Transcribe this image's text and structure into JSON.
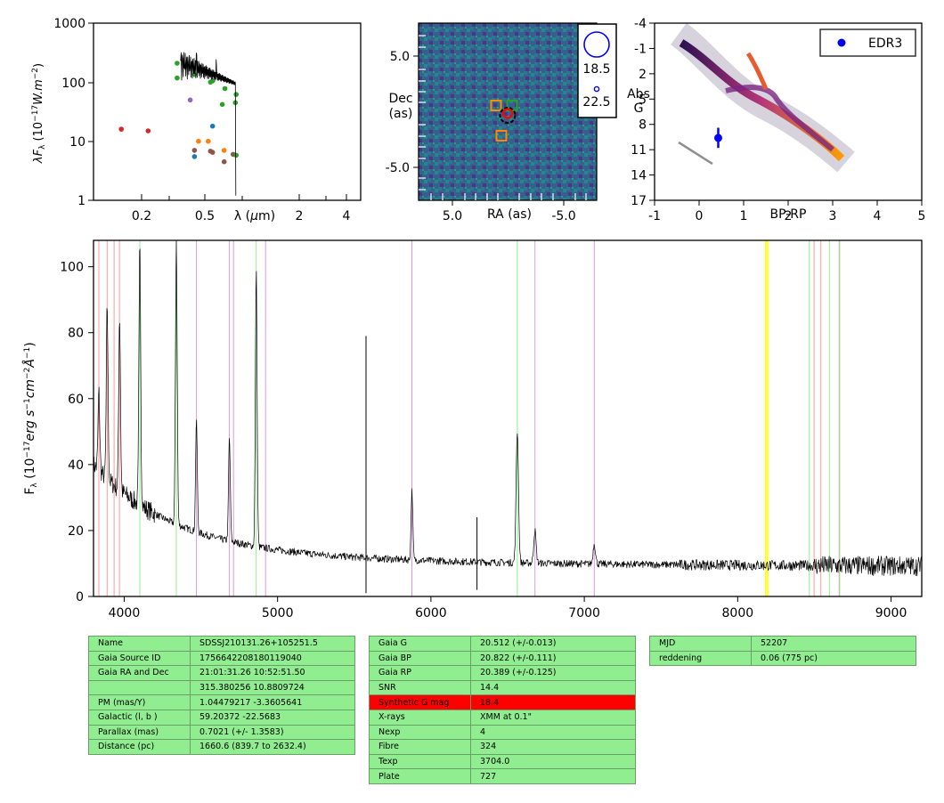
{
  "sed_panel": {
    "ylabel": "λF_λ (10^-17 W.m^-2)",
    "xlabel": "λ (μm)",
    "y_ticks": [
      "1",
      "10",
      "100",
      "1000"
    ],
    "x_ticks": [
      "0.2",
      "0.5",
      "2",
      "4"
    ],
    "scale": "log-log"
  },
  "image_panel": {
    "xlabel": "RA (as)",
    "ylabel": "Dec (as)",
    "x_ticks": [
      "5.0",
      "-5.0"
    ],
    "y_ticks": [
      "5.0",
      "-5.0"
    ],
    "legend": [
      "18.5",
      "22.5"
    ]
  },
  "hr_panel": {
    "xlabel": "BP-RP",
    "ylabel": "Abs G",
    "x_ticks": [
      "-1",
      "0",
      "1",
      "2",
      "3",
      "4",
      "5"
    ],
    "y_ticks": [
      "-4",
      "-1",
      "2",
      "5",
      "8",
      "11",
      "14",
      "17"
    ],
    "legend": "EDR3"
  },
  "spectrum_panel": {
    "ylabel": "F_λ (10^-17 erg s^-1 cm^-2 Å^-1)",
    "x_ticks": [
      "4000",
      "5000",
      "6000",
      "7000",
      "8000",
      "9000"
    ],
    "y_ticks": [
      "0",
      "20",
      "40",
      "60",
      "80",
      "100"
    ]
  },
  "chart_data": [
    {
      "type": "scatter",
      "id": "sed",
      "xlabel": "λ (μm)",
      "ylabel": "λF_λ (10^-17 W.m^-2)",
      "xscale": "log",
      "yscale": "log",
      "xlim": [
        0.1,
        6
      ],
      "ylim": [
        1,
        1000
      ],
      "series": [
        {
          "color": "#2ca02c",
          "points": [
            [
              0.36,
              210
            ],
            [
              0.36,
              118
            ],
            [
              0.41,
              185
            ],
            [
              0.47,
              135
            ],
            [
              0.6,
              100
            ],
            [
              0.62,
              105
            ],
            [
              0.72,
              42
            ],
            [
              0.75,
              78
            ],
            [
              0.88,
              45
            ],
            [
              0.89,
              62
            ]
          ]
        },
        {
          "color": "#d62728",
          "points": [
            [
              0.153,
              16
            ],
            [
              0.231,
              15
            ]
          ]
        },
        {
          "color": "#9467bd",
          "points": [
            [
              0.44,
              50
            ]
          ]
        },
        {
          "color": "#1f77b4",
          "points": [
            [
              0.47,
              5.5
            ],
            [
              0.62,
              18
            ]
          ]
        },
        {
          "color": "#ff7f0e",
          "points": [
            [
              0.5,
              10
            ],
            [
              0.58,
              10
            ],
            [
              0.74,
              7
            ]
          ]
        },
        {
          "color": "#8c564b",
          "points": [
            [
              0.47,
              7
            ],
            [
              0.6,
              6.8
            ],
            [
              0.62,
              6.5
            ],
            [
              0.74,
              4.5
            ],
            [
              0.85,
              6
            ]
          ]
        },
        {
          "color": "#2ca02c",
          "points": [
            [
              0.89,
              5.8
            ]
          ]
        }
      ]
    },
    {
      "type": "heatmap",
      "id": "image",
      "xlabel": "RA (as)",
      "ylabel": "Dec (as)",
      "xlim": [
        10,
        -10
      ],
      "ylim": [
        -10,
        10
      ],
      "markers": [
        {
          "shape": "square",
          "color": "#ff8c00",
          "x": 1.3,
          "y": 0.7
        },
        {
          "shape": "square",
          "color": "#ff8c00",
          "x": 0.7,
          "y": -2.7
        },
        {
          "shape": "square",
          "color": "#2ca02c",
          "x": -0.5,
          "y": 0.7
        },
        {
          "shape": "circle",
          "color": "#000000",
          "x": 0.0,
          "y": -0.4
        },
        {
          "shape": "circle",
          "color": "#ff0000",
          "x": 0.0,
          "y": -0.2
        }
      ]
    },
    {
      "type": "scatter",
      "id": "hr",
      "xlabel": "BP-RP",
      "ylabel": "Abs G",
      "xlim": [
        -1,
        5
      ],
      "ylim": [
        17,
        -4
      ],
      "legend": "EDR3",
      "points": [
        {
          "x": 0.43,
          "y": 9.6,
          "yerr": 1.2,
          "color": "#0000ff"
        }
      ]
    },
    {
      "type": "line",
      "id": "spectrum",
      "xlabel": "",
      "ylabel": "F_λ (10^-17 erg s^-1 cm^-2 Å^-1)",
      "xlim": [
        3800,
        9200
      ],
      "ylim": [
        0,
        108
      ],
      "lines": [
        {
          "x": 3835,
          "color": "#ff9999"
        },
        {
          "x": 3889,
          "color": "#ff9999"
        },
        {
          "x": 3934,
          "color": "#ff9999"
        },
        {
          "x": 3969,
          "color": "#ff9999"
        },
        {
          "x": 4102,
          "color": "#90ee90"
        },
        {
          "x": 4340,
          "color": "#90ee90"
        },
        {
          "x": 4471,
          "color": "#dd99dd"
        },
        {
          "x": 4686,
          "color": "#dd99dd"
        },
        {
          "x": 4713,
          "color": "#dd99dd"
        },
        {
          "x": 4861,
          "color": "#90ee90"
        },
        {
          "x": 4922,
          "color": "#dd99dd"
        },
        {
          "x": 5876,
          "color": "#dd99dd"
        },
        {
          "x": 6563,
          "color": "#90ee90"
        },
        {
          "x": 6678,
          "color": "#dd99dd"
        },
        {
          "x": 7065,
          "color": "#dd99dd"
        },
        {
          "x": 8183,
          "color": "#ffff00"
        },
        {
          "x": 8195,
          "color": "#ffff00"
        },
        {
          "x": 8467,
          "color": "#90ee90"
        },
        {
          "x": 8498,
          "color": "#ff9999"
        },
        {
          "x": 8542,
          "color": "#ff9999"
        },
        {
          "x": 8598,
          "color": "#90ee90"
        },
        {
          "x": 8662,
          "color": "#ff9999"
        },
        {
          "x": 8665,
          "color": "#90ee90"
        }
      ],
      "emission_peaks": [
        {
          "x": 3835,
          "y": 62
        },
        {
          "x": 3889,
          "y": 88
        },
        {
          "x": 3970,
          "y": 85
        },
        {
          "x": 4102,
          "y": 108
        },
        {
          "x": 4340,
          "y": 108
        },
        {
          "x": 4471,
          "y": 53
        },
        {
          "x": 4686,
          "y": 48
        },
        {
          "x": 4861,
          "y": 99
        },
        {
          "x": 5876,
          "y": 32
        },
        {
          "x": 6563,
          "y": 50
        },
        {
          "x": 6678,
          "y": 20
        },
        {
          "x": 7065,
          "y": 16
        }
      ],
      "spikes": [
        {
          "x": 5577,
          "ytop": 79,
          "ybot": 1
        },
        {
          "x": 6300,
          "ytop": 24,
          "ybot": 2
        }
      ]
    }
  ],
  "table1": [
    [
      "Name",
      "SDSSJ210131.26+105251.5"
    ],
    [
      "Gaia Source ID",
      "1756642208180119040"
    ],
    [
      "Gaia RA and Dec",
      "21:01:31.26    10:52:51.50"
    ],
    [
      "",
      "315.380256    10.8809724"
    ],
    [
      "PM (mas/Y)",
      "1.04479217    -3.3605641"
    ],
    [
      "Galactic (l, b )",
      "59.20372    -22.5683"
    ],
    [
      "Parallax (mas)",
      "0.7021 (+/- 1.3583)"
    ],
    [
      "Distance (pc)",
      "1660.6 (839.7 to 2632.4)"
    ]
  ],
  "table2": [
    [
      "Gaia G",
      "20.512 (+/-0.013)"
    ],
    [
      "Gaia BP",
      "20.822 (+/-0.111)"
    ],
    [
      "Gaia RP",
      "20.389 (+/-0.125)"
    ],
    [
      "SNR",
      "14.4"
    ],
    [
      "Synthetic G mag",
      "18.4"
    ],
    [
      "X-rays",
      "XMM at 0.1\""
    ],
    [
      "Nexp",
      "4"
    ],
    [
      "Fibre",
      "324"
    ],
    [
      "Texp",
      "3704.0"
    ],
    [
      "Plate",
      "727"
    ]
  ],
  "table3": [
    [
      "MJD",
      "52207"
    ],
    [
      "reddening",
      "0.06 (775 pc)"
    ]
  ]
}
